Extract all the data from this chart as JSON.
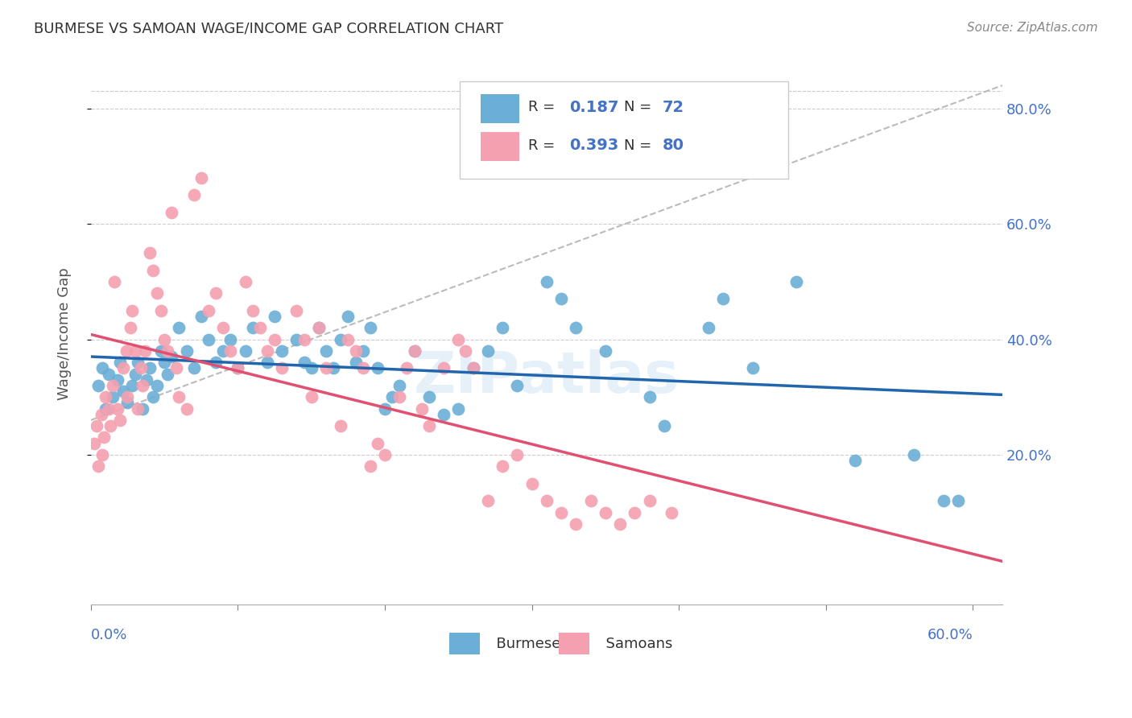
{
  "title": "BURMESE VS SAMOAN WAGE/INCOME GAP CORRELATION CHART",
  "source": "Source: ZipAtlas.com",
  "ylabel": "Wage/Income Gap",
  "watermark": "ZIPatlas",
  "burmese_R": 0.187,
  "burmese_N": 72,
  "samoan_R": 0.393,
  "samoan_N": 80,
  "burmese_color": "#6baed6",
  "samoan_color": "#f4a0b0",
  "burmese_line_color": "#2166ac",
  "samoan_line_color": "#e05070",
  "dashed_line_color": "#bbbbbb",
  "xlim": [
    0.0,
    0.62
  ],
  "ylim": [
    -0.06,
    0.88
  ],
  "yticks": [
    0.2,
    0.4,
    0.6,
    0.8
  ],
  "xticks": [
    0.0,
    0.1,
    0.2,
    0.3,
    0.4,
    0.5,
    0.6
  ],
  "burmese_x": [
    0.005,
    0.008,
    0.01,
    0.012,
    0.015,
    0.018,
    0.02,
    0.022,
    0.025,
    0.028,
    0.03,
    0.032,
    0.035,
    0.038,
    0.04,
    0.042,
    0.045,
    0.048,
    0.05,
    0.052,
    0.055,
    0.06,
    0.065,
    0.07,
    0.075,
    0.08,
    0.085,
    0.09,
    0.095,
    0.1,
    0.105,
    0.11,
    0.12,
    0.125,
    0.13,
    0.14,
    0.145,
    0.15,
    0.155,
    0.16,
    0.165,
    0.17,
    0.175,
    0.18,
    0.185,
    0.19,
    0.195,
    0.2,
    0.205,
    0.21,
    0.22,
    0.23,
    0.24,
    0.25,
    0.26,
    0.27,
    0.28,
    0.29,
    0.31,
    0.32,
    0.33,
    0.35,
    0.38,
    0.39,
    0.42,
    0.43,
    0.45,
    0.48,
    0.52,
    0.56,
    0.58,
    0.59
  ],
  "burmese_y": [
    0.32,
    0.35,
    0.28,
    0.34,
    0.3,
    0.33,
    0.36,
    0.31,
    0.29,
    0.32,
    0.34,
    0.36,
    0.28,
    0.33,
    0.35,
    0.3,
    0.32,
    0.38,
    0.36,
    0.34,
    0.37,
    0.42,
    0.38,
    0.35,
    0.44,
    0.4,
    0.36,
    0.38,
    0.4,
    0.35,
    0.38,
    0.42,
    0.36,
    0.44,
    0.38,
    0.4,
    0.36,
    0.35,
    0.42,
    0.38,
    0.35,
    0.4,
    0.44,
    0.36,
    0.38,
    0.42,
    0.35,
    0.28,
    0.3,
    0.32,
    0.38,
    0.3,
    0.27,
    0.28,
    0.35,
    0.38,
    0.42,
    0.32,
    0.5,
    0.47,
    0.42,
    0.38,
    0.3,
    0.25,
    0.42,
    0.47,
    0.35,
    0.5,
    0.19,
    0.2,
    0.12,
    0.12
  ],
  "samoan_x": [
    0.002,
    0.004,
    0.005,
    0.007,
    0.008,
    0.009,
    0.01,
    0.012,
    0.013,
    0.015,
    0.016,
    0.018,
    0.02,
    0.022,
    0.024,
    0.025,
    0.027,
    0.028,
    0.03,
    0.032,
    0.034,
    0.035,
    0.037,
    0.04,
    0.042,
    0.045,
    0.048,
    0.05,
    0.052,
    0.055,
    0.058,
    0.06,
    0.065,
    0.07,
    0.075,
    0.08,
    0.085,
    0.09,
    0.095,
    0.1,
    0.105,
    0.11,
    0.115,
    0.12,
    0.125,
    0.13,
    0.14,
    0.145,
    0.15,
    0.155,
    0.16,
    0.17,
    0.175,
    0.18,
    0.185,
    0.19,
    0.195,
    0.2,
    0.21,
    0.215,
    0.22,
    0.225,
    0.23,
    0.24,
    0.25,
    0.255,
    0.26,
    0.27,
    0.28,
    0.29,
    0.3,
    0.31,
    0.32,
    0.33,
    0.34,
    0.35,
    0.36,
    0.37,
    0.38,
    0.395
  ],
  "samoan_y": [
    0.22,
    0.25,
    0.18,
    0.27,
    0.2,
    0.23,
    0.3,
    0.28,
    0.25,
    0.32,
    0.5,
    0.28,
    0.26,
    0.35,
    0.38,
    0.3,
    0.42,
    0.45,
    0.38,
    0.28,
    0.35,
    0.32,
    0.38,
    0.55,
    0.52,
    0.48,
    0.45,
    0.4,
    0.38,
    0.62,
    0.35,
    0.3,
    0.28,
    0.65,
    0.68,
    0.45,
    0.48,
    0.42,
    0.38,
    0.35,
    0.5,
    0.45,
    0.42,
    0.38,
    0.4,
    0.35,
    0.45,
    0.4,
    0.3,
    0.42,
    0.35,
    0.25,
    0.4,
    0.38,
    0.35,
    0.18,
    0.22,
    0.2,
    0.3,
    0.35,
    0.38,
    0.28,
    0.25,
    0.35,
    0.4,
    0.38,
    0.35,
    0.12,
    0.18,
    0.2,
    0.15,
    0.12,
    0.1,
    0.08,
    0.12,
    0.1,
    0.08,
    0.1,
    0.12,
    0.1
  ]
}
